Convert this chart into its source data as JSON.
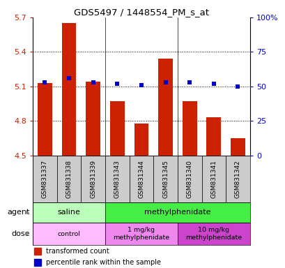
{
  "title": "GDS5497 / 1448554_PM_s_at",
  "categories": [
    "GSM831337",
    "GSM831338",
    "GSM831339",
    "GSM831343",
    "GSM831344",
    "GSM831345",
    "GSM831340",
    "GSM831341",
    "GSM831342"
  ],
  "bar_values": [
    5.13,
    5.65,
    5.14,
    4.97,
    4.78,
    5.34,
    4.97,
    4.83,
    4.65
  ],
  "dot_values": [
    53,
    56,
    53,
    52,
    51,
    53,
    53,
    52,
    50
  ],
  "bar_color": "#cc2200",
  "dot_color": "#0000cc",
  "ylim_left": [
    4.5,
    5.7
  ],
  "ylim_right": [
    0,
    100
  ],
  "yticks_left": [
    4.5,
    4.8,
    5.1,
    5.4,
    5.7
  ],
  "yticks_right": [
    0,
    25,
    50,
    75,
    100
  ],
  "ytick_labels_left": [
    "4.5",
    "4.8",
    "5.1",
    "5.4",
    "5.7"
  ],
  "ytick_labels_right": [
    "0",
    "25",
    "50",
    "75",
    "100%"
  ],
  "agent_groups": [
    {
      "label": "saline",
      "start": 0,
      "end": 2,
      "color": "#bbffbb"
    },
    {
      "label": "methylphenidate",
      "start": 3,
      "end": 8,
      "color": "#44ee44"
    }
  ],
  "dose_groups": [
    {
      "label": "control",
      "start": 0,
      "end": 2,
      "color": "#ffbbff"
    },
    {
      "label": "1 mg/kg\nmethylphenidate",
      "start": 3,
      "end": 5,
      "color": "#ee88ee"
    },
    {
      "label": "10 mg/kg\nmethylphenidate",
      "start": 6,
      "end": 8,
      "color": "#cc44cc"
    }
  ],
  "legend_items": [
    {
      "color": "#cc2200",
      "label": "transformed count"
    },
    {
      "color": "#0000cc",
      "label": "percentile rank within the sample"
    }
  ],
  "agent_row_label": "agent",
  "dose_row_label": "dose",
  "bar_bottom": 4.5,
  "dot_size": 18,
  "tick_color_left": "#cc2200",
  "tick_color_right": "#0000cc",
  "xtick_bg": "#cccccc",
  "gridline_style": ":",
  "gridline_color": "#000000",
  "gridline_lw": 0.7
}
